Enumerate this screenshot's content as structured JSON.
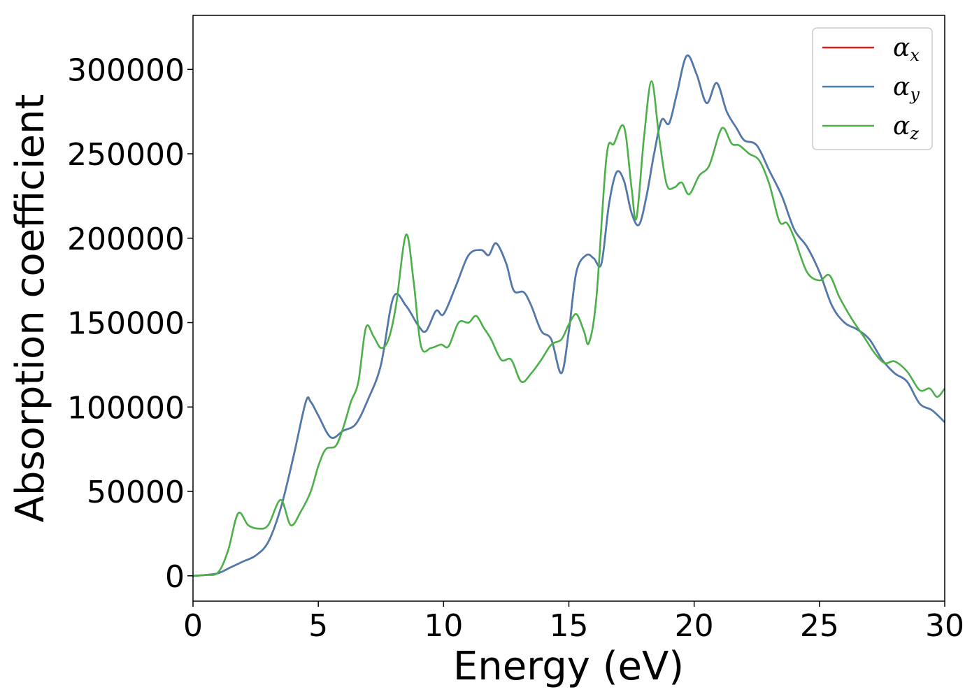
{
  "chart_data": {
    "type": "line",
    "title": "",
    "xlabel": "Energy (eV)",
    "ylabel": "Absorption coefficient",
    "xlim": [
      0,
      30
    ],
    "ylim": [
      -15000,
      332000
    ],
    "xticks": [
      0,
      5,
      10,
      15,
      20,
      25,
      30
    ],
    "yticks": [
      0,
      50000,
      100000,
      150000,
      200000,
      250000,
      300000
    ],
    "xtick_labels": [
      "0",
      "5",
      "10",
      "15",
      "20",
      "25",
      "30"
    ],
    "ytick_labels": [
      "0",
      "50000",
      "100000",
      "150000",
      "200000",
      "250000",
      "300000"
    ],
    "grid": false,
    "legend_position": "top-right",
    "series": [
      {
        "name": "α",
        "subscript": "x",
        "color": "#e41a1c",
        "points": [
          [
            0,
            0
          ],
          [
            0.5,
            500
          ],
          [
            1,
            1500
          ],
          [
            1.5,
            5000
          ],
          [
            2,
            8500
          ],
          [
            2.5,
            12000
          ],
          [
            3,
            20000
          ],
          [
            3.5,
            40000
          ],
          [
            4,
            70000
          ],
          [
            4.5,
            103000
          ],
          [
            4.7,
            103000
          ],
          [
            5,
            95000
          ],
          [
            5.5,
            82000
          ],
          [
            6,
            86000
          ],
          [
            6.5,
            90000
          ],
          [
            7,
            105000
          ],
          [
            7.5,
            125000
          ],
          [
            8,
            165000
          ],
          [
            8.5,
            160000
          ],
          [
            9,
            148000
          ],
          [
            9.3,
            145000
          ],
          [
            9.7,
            157000
          ],
          [
            10,
            155000
          ],
          [
            10.5,
            172000
          ],
          [
            11,
            190000
          ],
          [
            11.5,
            193000
          ],
          [
            11.8,
            190000
          ],
          [
            12.1,
            197000
          ],
          [
            12.5,
            185000
          ],
          [
            12.8,
            169000
          ],
          [
            13.2,
            168000
          ],
          [
            13.5,
            160000
          ],
          [
            13.9,
            145000
          ],
          [
            14.3,
            140000
          ],
          [
            14.7,
            120000
          ],
          [
            15,
            145000
          ],
          [
            15.3,
            180000
          ],
          [
            15.7,
            190000
          ],
          [
            16,
            188000
          ],
          [
            16.3,
            185000
          ],
          [
            16.6,
            220000
          ],
          [
            16.9,
            239000
          ],
          [
            17.2,
            234000
          ],
          [
            17.5,
            215000
          ],
          [
            17.8,
            208000
          ],
          [
            18.1,
            225000
          ],
          [
            18.4,
            250000
          ],
          [
            18.7,
            270000
          ],
          [
            19,
            268000
          ],
          [
            19.3,
            285000
          ],
          [
            19.7,
            308000
          ],
          [
            20.1,
            297000
          ],
          [
            20.5,
            280000
          ],
          [
            20.9,
            292000
          ],
          [
            21.3,
            275000
          ],
          [
            21.7,
            265000
          ],
          [
            22,
            258000
          ],
          [
            22.5,
            255000
          ],
          [
            23,
            240000
          ],
          [
            23.5,
            225000
          ],
          [
            24,
            205000
          ],
          [
            24.5,
            195000
          ],
          [
            25,
            180000
          ],
          [
            25.5,
            160000
          ],
          [
            26,
            150000
          ],
          [
            26.5,
            146000
          ],
          [
            27,
            140000
          ],
          [
            27.5,
            128000
          ],
          [
            28,
            120000
          ],
          [
            28.5,
            115000
          ],
          [
            29,
            102000
          ],
          [
            29.5,
            98000
          ],
          [
            30,
            91000
          ]
        ]
      },
      {
        "name": "α",
        "subscript": "y",
        "color": "#4a7cb0",
        "points": [
          [
            0,
            0
          ],
          [
            0.5,
            500
          ],
          [
            1,
            1500
          ],
          [
            1.5,
            5000
          ],
          [
            2,
            8500
          ],
          [
            2.5,
            12000
          ],
          [
            3,
            20000
          ],
          [
            3.5,
            40000
          ],
          [
            4,
            70000
          ],
          [
            4.5,
            103000
          ],
          [
            4.7,
            103000
          ],
          [
            5,
            95000
          ],
          [
            5.5,
            82000
          ],
          [
            6,
            86000
          ],
          [
            6.5,
            90000
          ],
          [
            7,
            105000
          ],
          [
            7.5,
            125000
          ],
          [
            8,
            165000
          ],
          [
            8.5,
            160000
          ],
          [
            9,
            148000
          ],
          [
            9.3,
            145000
          ],
          [
            9.7,
            157000
          ],
          [
            10,
            155000
          ],
          [
            10.5,
            172000
          ],
          [
            11,
            190000
          ],
          [
            11.5,
            193000
          ],
          [
            11.8,
            190000
          ],
          [
            12.1,
            197000
          ],
          [
            12.5,
            185000
          ],
          [
            12.8,
            169000
          ],
          [
            13.2,
            168000
          ],
          [
            13.5,
            160000
          ],
          [
            13.9,
            145000
          ],
          [
            14.3,
            140000
          ],
          [
            14.7,
            120000
          ],
          [
            15,
            145000
          ],
          [
            15.3,
            180000
          ],
          [
            15.7,
            190000
          ],
          [
            16,
            188000
          ],
          [
            16.3,
            185000
          ],
          [
            16.6,
            220000
          ],
          [
            16.9,
            239000
          ],
          [
            17.2,
            234000
          ],
          [
            17.5,
            215000
          ],
          [
            17.8,
            208000
          ],
          [
            18.1,
            225000
          ],
          [
            18.4,
            250000
          ],
          [
            18.7,
            270000
          ],
          [
            19,
            268000
          ],
          [
            19.3,
            285000
          ],
          [
            19.7,
            308000
          ],
          [
            20.1,
            297000
          ],
          [
            20.5,
            280000
          ],
          [
            20.9,
            292000
          ],
          [
            21.3,
            275000
          ],
          [
            21.7,
            265000
          ],
          [
            22,
            258000
          ],
          [
            22.5,
            255000
          ],
          [
            23,
            240000
          ],
          [
            23.5,
            225000
          ],
          [
            24,
            205000
          ],
          [
            24.5,
            195000
          ],
          [
            25,
            180000
          ],
          [
            25.5,
            160000
          ],
          [
            26,
            150000
          ],
          [
            26.5,
            146000
          ],
          [
            27,
            140000
          ],
          [
            27.5,
            128000
          ],
          [
            28,
            120000
          ],
          [
            28.5,
            115000
          ],
          [
            29,
            102000
          ],
          [
            29.5,
            98000
          ],
          [
            30,
            91000
          ]
        ]
      },
      {
        "name": "α",
        "subscript": "z",
        "color": "#4daf4a",
        "points": [
          [
            0,
            0
          ],
          [
            0.5,
            500
          ],
          [
            1,
            2000
          ],
          [
            1.4,
            15000
          ],
          [
            1.8,
            37000
          ],
          [
            2.2,
            30000
          ],
          [
            2.6,
            28000
          ],
          [
            3,
            30000
          ],
          [
            3.5,
            45000
          ],
          [
            3.9,
            30000
          ],
          [
            4.3,
            38000
          ],
          [
            4.7,
            50000
          ],
          [
            5,
            65000
          ],
          [
            5.3,
            75000
          ],
          [
            5.7,
            77000
          ],
          [
            6,
            88000
          ],
          [
            6.3,
            103000
          ],
          [
            6.6,
            115000
          ],
          [
            6.9,
            147000
          ],
          [
            7.2,
            142000
          ],
          [
            7.5,
            135000
          ],
          [
            7.8,
            140000
          ],
          [
            8.1,
            160000
          ],
          [
            8.5,
            202000
          ],
          [
            8.8,
            175000
          ],
          [
            9.1,
            136000
          ],
          [
            9.5,
            135000
          ],
          [
            9.9,
            137000
          ],
          [
            10.2,
            136000
          ],
          [
            10.6,
            150000
          ],
          [
            11,
            150000
          ],
          [
            11.3,
            154000
          ],
          [
            11.6,
            147000
          ],
          [
            11.9,
            140000
          ],
          [
            12.3,
            128000
          ],
          [
            12.7,
            128000
          ],
          [
            13.1,
            115000
          ],
          [
            13.5,
            120000
          ],
          [
            13.9,
            128000
          ],
          [
            14.3,
            137000
          ],
          [
            14.7,
            140000
          ],
          [
            15,
            149000
          ],
          [
            15.3,
            155000
          ],
          [
            15.6,
            145000
          ],
          [
            15.8,
            138000
          ],
          [
            16.1,
            165000
          ],
          [
            16.5,
            248000
          ],
          [
            16.8,
            256000
          ],
          [
            17.2,
            266000
          ],
          [
            17.5,
            230000
          ],
          [
            17.7,
            212000
          ],
          [
            18,
            260000
          ],
          [
            18.3,
            293000
          ],
          [
            18.6,
            260000
          ],
          [
            18.9,
            232000
          ],
          [
            19.2,
            230000
          ],
          [
            19.5,
            233000
          ],
          [
            19.8,
            226000
          ],
          [
            20.2,
            237000
          ],
          [
            20.6,
            243000
          ],
          [
            21,
            262000
          ],
          [
            21.2,
            265000
          ],
          [
            21.5,
            256000
          ],
          [
            21.8,
            255000
          ],
          [
            22.2,
            250000
          ],
          [
            22.6,
            246000
          ],
          [
            23,
            232000
          ],
          [
            23.4,
            210000
          ],
          [
            23.7,
            209000
          ],
          [
            24,
            200000
          ],
          [
            24.5,
            180000
          ],
          [
            25,
            175000
          ],
          [
            25.4,
            178000
          ],
          [
            25.8,
            165000
          ],
          [
            26.3,
            152000
          ],
          [
            26.8,
            141000
          ],
          [
            27.2,
            132000
          ],
          [
            27.6,
            126000
          ],
          [
            28,
            127000
          ],
          [
            28.5,
            121000
          ],
          [
            29,
            110000
          ],
          [
            29.4,
            111000
          ],
          [
            29.7,
            106000
          ],
          [
            30,
            111000
          ]
        ]
      }
    ]
  }
}
